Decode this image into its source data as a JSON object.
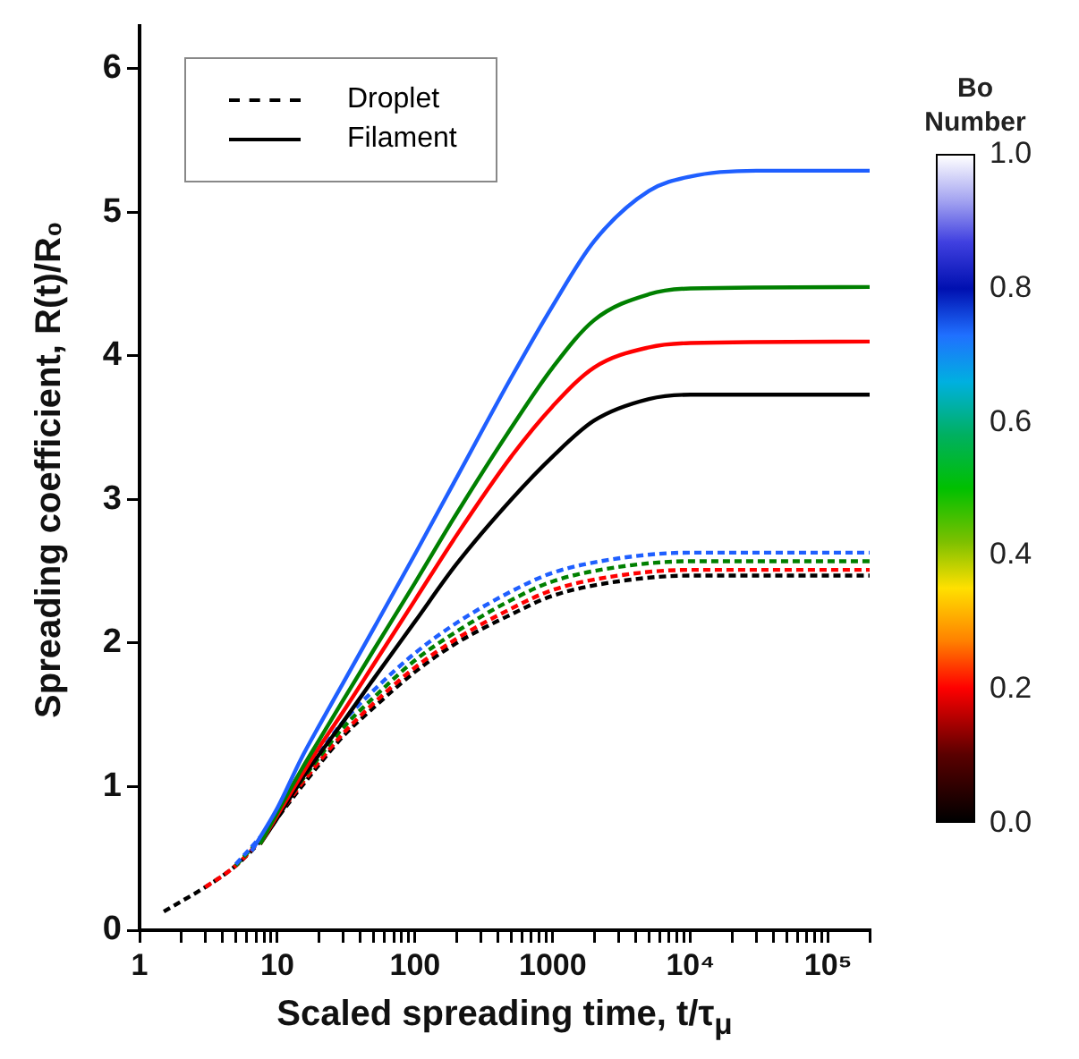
{
  "chart_data": {
    "type": "line",
    "xlabel": "Scaled spreading time, t/τ$_{μ}$",
    "ylabel": "Spreading coefficient, R(t)/R₀",
    "clabel": "Bo Number",
    "clim": [
      0,
      1
    ],
    "cticks": [
      {
        "value": 0,
        "label": "0.0"
      },
      0.2,
      0.4,
      0.6,
      0.8,
      {
        "value": 1,
        "label": "1.0"
      }
    ],
    "log": "x",
    "xlim": [
      1,
      200000
    ],
    "ylim": [
      0,
      6.3
    ],
    "yticks": [
      0,
      1,
      2,
      3,
      4,
      5,
      6
    ],
    "xticks": [
      1,
      {
        "value": 2,
        "label": null
      },
      {
        "value": 3,
        "label": null
      },
      {
        "value": 4,
        "label": null
      },
      {
        "value": 5,
        "label": null
      },
      {
        "value": 6,
        "label": null
      },
      {
        "value": 7,
        "label": null
      },
      {
        "value": 8,
        "label": null
      },
      {
        "value": 9,
        "label": null
      },
      10,
      {
        "value": 20,
        "label": null
      },
      {
        "value": 30,
        "label": null
      },
      {
        "value": 40,
        "label": null
      },
      {
        "value": 50,
        "label": null
      },
      {
        "value": 60,
        "label": null
      },
      {
        "value": 70,
        "label": null
      },
      {
        "value": 80,
        "label": null
      },
      {
        "value": 90,
        "label": null
      },
      100,
      {
        "value": 200,
        "label": null
      },
      {
        "value": 300,
        "label": null
      },
      {
        "value": 400,
        "label": null
      },
      {
        "value": 500,
        "label": null
      },
      {
        "value": 600,
        "label": null
      },
      {
        "value": 700,
        "label": null
      },
      {
        "value": 800,
        "label": null
      },
      {
        "value": 900,
        "label": null
      },
      1000,
      {
        "value": 2000,
        "label": null
      },
      {
        "value": 3000,
        "label": null
      },
      {
        "value": 4000,
        "label": null
      },
      {
        "value": 5000,
        "label": null
      },
      {
        "value": 6000,
        "label": null
      },
      {
        "value": 7000,
        "label": null
      },
      {
        "value": 8000,
        "label": null
      },
      {
        "value": 9000,
        "label": null
      },
      {
        "value": 10000,
        "label": "10⁴"
      },
      {
        "value": 20000,
        "label": null
      },
      {
        "value": 30000,
        "label": null
      },
      {
        "value": 40000,
        "label": null
      },
      {
        "value": 50000,
        "label": null
      },
      {
        "value": 60000,
        "label": null
      },
      {
        "value": 70000,
        "label": null
      },
      {
        "value": 80000,
        "label": null
      },
      {
        "value": 90000,
        "label": null
      },
      {
        "value": 100000,
        "label": "10⁵"
      },
      {
        "value": 200000,
        "label": null
      }
    ],
    "grid": false,
    "legend": "top left",
    "marker": "none",
    "series": [
      {
        "name": "Droplet",
        "color": "#000000",
        "line_style": "dashed",
        "x": [
          1.5,
          2,
          3,
          5,
          8,
          10,
          15,
          20,
          30,
          50,
          100,
          200,
          500,
          1000,
          3000,
          10000,
          200000
        ],
        "values": [
          0.13,
          0.2,
          0.3,
          0.45,
          0.65,
          0.78,
          1.0,
          1.15,
          1.35,
          1.55,
          1.8,
          2.0,
          2.2,
          2.33,
          2.43,
          2.47,
          2.47
        ]
      },
      {
        "color": "#ff0000",
        "line_style": "dashed",
        "x": [
          3,
          5,
          8,
          10,
          15,
          20,
          30,
          50,
          100,
          200,
          500,
          1000,
          3000,
          10000,
          200000
        ],
        "values": [
          0.3,
          0.45,
          0.66,
          0.79,
          1.02,
          1.17,
          1.37,
          1.58,
          1.83,
          2.03,
          2.24,
          2.37,
          2.47,
          2.51,
          2.51
        ]
      },
      {
        "color": "#008000",
        "line_style": "dashed",
        "x": [
          5,
          8,
          10,
          15,
          20,
          30,
          50,
          100,
          200,
          500,
          1000,
          3000,
          10000,
          200000
        ],
        "values": [
          0.45,
          0.67,
          0.8,
          1.04,
          1.2,
          1.41,
          1.62,
          1.88,
          2.08,
          2.3,
          2.43,
          2.53,
          2.57,
          2.57
        ]
      },
      {
        "color": "#1f5fff",
        "line_style": "dashed",
        "x": [
          5,
          8,
          10,
          15,
          20,
          30,
          50,
          100,
          200,
          500,
          1000,
          3000,
          10000,
          200000
        ],
        "values": [
          0.46,
          0.68,
          0.81,
          1.06,
          1.23,
          1.45,
          1.67,
          1.93,
          2.14,
          2.36,
          2.49,
          2.59,
          2.63,
          2.63
        ]
      },
      {
        "name": "Filament",
        "color": "#000000",
        "line_style": "solid",
        "x": [
          7.5,
          10,
          15,
          20,
          30,
          50,
          100,
          200,
          500,
          1000,
          2000,
          5000,
          10000,
          200000
        ],
        "values": [
          0.6,
          0.78,
          1.05,
          1.22,
          1.45,
          1.75,
          2.15,
          2.55,
          3.0,
          3.3,
          3.55,
          3.7,
          3.73,
          3.73
        ]
      },
      {
        "color": "#ff0000",
        "line_style": "solid",
        "x": [
          7.5,
          10,
          15,
          20,
          30,
          50,
          100,
          200,
          500,
          1000,
          2000,
          5000,
          10000,
          200000
        ],
        "values": [
          0.6,
          0.8,
          1.08,
          1.27,
          1.52,
          1.85,
          2.3,
          2.75,
          3.3,
          3.65,
          3.92,
          4.06,
          4.09,
          4.1
        ]
      },
      {
        "color": "#008000",
        "line_style": "solid",
        "x": [
          7.5,
          10,
          15,
          20,
          30,
          50,
          100,
          200,
          500,
          1000,
          2000,
          5000,
          10000,
          200000
        ],
        "values": [
          0.6,
          0.82,
          1.12,
          1.32,
          1.6,
          1.95,
          2.42,
          2.9,
          3.5,
          3.92,
          4.25,
          4.43,
          4.47,
          4.48
        ]
      },
      {
        "color": "#1f5fff",
        "line_style": "solid",
        "x": [
          6.5,
          10,
          15,
          20,
          30,
          50,
          100,
          200,
          500,
          1000,
          2000,
          5000,
          10000,
          30000,
          200000
        ],
        "values": [
          0.55,
          0.85,
          1.2,
          1.42,
          1.72,
          2.1,
          2.62,
          3.15,
          3.85,
          4.35,
          4.8,
          5.15,
          5.25,
          5.29,
          5.29
        ]
      }
    ]
  }
}
